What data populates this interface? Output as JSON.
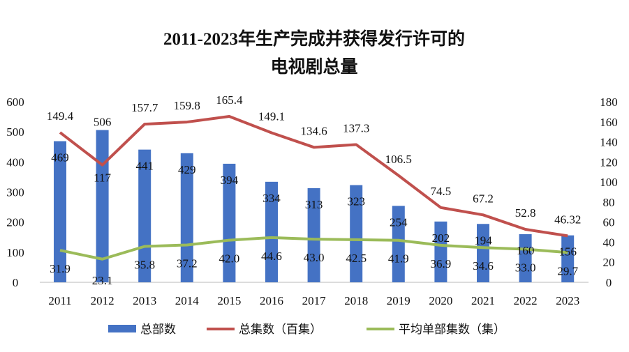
{
  "chart_data": {
    "type": "bar+line",
    "title_line1": "2011-2023年生产完成并获得发行许可的",
    "title_line2": "电视剧总量",
    "categories": [
      "2011",
      "2012",
      "2013",
      "2014",
      "2015",
      "2016",
      "2017",
      "2018",
      "2019",
      "2020",
      "2021",
      "2022",
      "2023"
    ],
    "left_axis": {
      "range": [
        0,
        600
      ],
      "ticks": [
        "0",
        "100",
        "200",
        "300",
        "400",
        "500",
        "600"
      ]
    },
    "right_axis": {
      "range": [
        0,
        180
      ],
      "ticks": [
        "0",
        "20",
        "40",
        "60",
        "80",
        "100",
        "120",
        "140",
        "160",
        "180"
      ]
    },
    "grid": false,
    "legend_position": "bottom",
    "series": [
      {
        "name": "总部数",
        "type": "bar",
        "axis": "left",
        "color": "#4472C4",
        "values": [
          469,
          506,
          441,
          429,
          394,
          334,
          313,
          323,
          254,
          202,
          194,
          160,
          156
        ],
        "labels": [
          "469",
          "506",
          "441",
          "429",
          "394",
          "334",
          "313",
          "323",
          "254",
          "202",
          "194",
          "160",
          "156"
        ]
      },
      {
        "name": "总集数（百集）",
        "type": "line",
        "axis": "right",
        "color": "#C0504D",
        "values": [
          149.4,
          117,
          157.7,
          159.8,
          165.4,
          149.1,
          134.6,
          137.3,
          106.5,
          74.5,
          67.2,
          52.8,
          46.32
        ],
        "labels": [
          "149.4",
          "117",
          "157.7",
          "159.8",
          "165.4",
          "149.1",
          "134.6",
          "137.3",
          "106.5",
          "74.5",
          "67.2",
          "52.8",
          "46.32"
        ]
      },
      {
        "name": "平均单部集数（集）",
        "type": "line",
        "axis": "right",
        "color": "#9BBB59",
        "values": [
          31.9,
          23.1,
          35.8,
          37.2,
          42.0,
          44.6,
          43.0,
          42.5,
          41.9,
          36.9,
          34.6,
          33.0,
          29.7
        ],
        "labels": [
          "31.9",
          "23.1",
          "35.8",
          "37.2",
          "42.0",
          "44.6",
          "43.0",
          "42.5",
          "41.9",
          "36.9",
          "34.6",
          "33.0",
          "29.7"
        ]
      }
    ]
  }
}
